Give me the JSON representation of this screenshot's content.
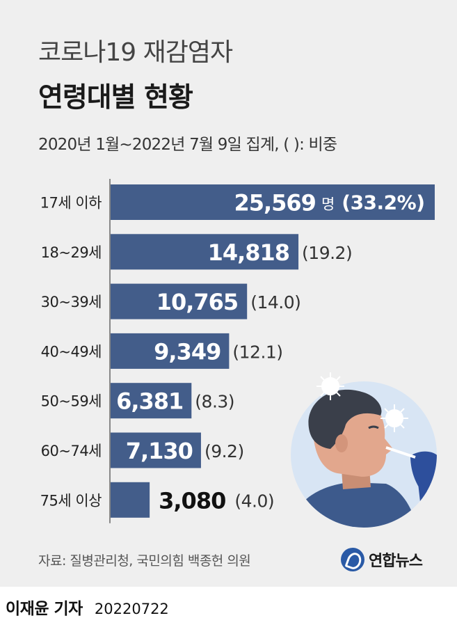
{
  "header": {
    "title_line1": "코로나19 재감염자",
    "title_line2": "연령대별 현황",
    "subtitle": "2020년 1월~2022년 7월 9일 집계, (  ): 비중"
  },
  "chart_data": {
    "type": "bar",
    "orientation": "horizontal",
    "categories": [
      "17세 이하",
      "18~29세",
      "30~39세",
      "40~49세",
      "50~59세",
      "60~74세",
      "75세 이상"
    ],
    "values": [
      25569,
      14818,
      10765,
      9349,
      6381,
      7130,
      3080
    ],
    "value_labels": [
      "25,569",
      "14,818",
      "10,765",
      "9,349",
      "6,381",
      "7,130",
      "3,080"
    ],
    "unit_label": "명",
    "shares": [
      "(33.2%)",
      "(19.2)",
      "(14.0)",
      "(12.1)",
      "(8.3)",
      "(9.2)",
      "(4.0)"
    ],
    "bar_color": "#435d8a",
    "xlim": [
      0,
      25569
    ]
  },
  "footer": {
    "source": "자료: 질병관리청, 국민의힘 백종헌 의원",
    "logo_text": "연합뉴스",
    "reporter": "이재윤 기자",
    "date": "20220722"
  }
}
